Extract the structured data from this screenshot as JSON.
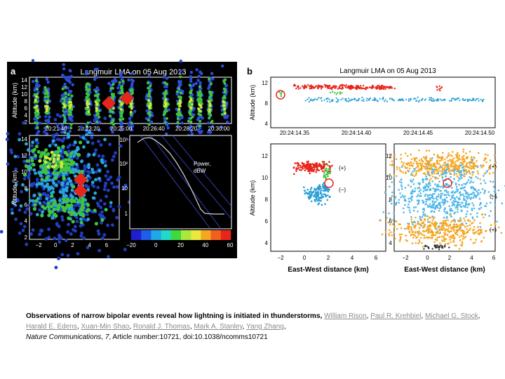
{
  "panel_a": {
    "label": "a",
    "title": "Langmuir LMA on 05 Aug 2013",
    "top_ylabel": "Altitude (km)",
    "top_yticks": [
      "2",
      "4",
      "6",
      "8",
      "10",
      "12",
      "14"
    ],
    "top_xticks": [
      "20:21:40",
      "20:23:20",
      "20:25:00",
      "20:26:40",
      "20:28:20",
      "20:30:00"
    ],
    "plan_ylabel": "Altitude (km)",
    "plan_yticks": [
      "2",
      "4",
      "6",
      "8",
      "10",
      "12",
      "14"
    ],
    "plan_xticks": [
      "−2",
      "0",
      "2",
      "4",
      "6"
    ],
    "power_yticks": [
      "10³",
      "10²",
      "10",
      "1"
    ],
    "power_xticks": [
      "−20",
      "0",
      "20",
      "40",
      "60"
    ],
    "power_label_1": "Power,",
    "power_label_2": "dBW"
  },
  "panel_b": {
    "label": "b",
    "title": "Langmuir LMA on 05 Aug 2013",
    "top_ylabel": "Altitude (km)",
    "top_yticks": [
      "4",
      "8",
      "12"
    ],
    "top_xticks": [
      "20:24:14.35",
      "20:24:14.40",
      "20:24:14.45",
      "20:24:14.50"
    ],
    "left_ylabel": "Altitude (km)",
    "left_yticks": [
      "4",
      "6",
      "8",
      "10",
      "12"
    ],
    "left_xticks": [
      "−2",
      "0",
      "2",
      "4",
      "6"
    ],
    "left_xlabel": "East-West distance (km)",
    "left_marks": [
      "(+)",
      "(−)"
    ],
    "right_yticks": [
      "4",
      "6",
      "8",
      "10",
      "12"
    ],
    "right_xticks": [
      "−2",
      "0",
      "2",
      "4",
      "6"
    ],
    "right_xlabel": "East-West distance (km)",
    "right_marks": [
      "(+)",
      "(−)",
      "(+)"
    ]
  },
  "caption": {
    "title": "Observations of narrow bipolar events reveal how lightning is initiated in thunderstorms,",
    "authors": [
      {
        "name": "William Rison",
        "sep": ", "
      },
      {
        "name": "Paul R. Krehbiel",
        "sep": ", "
      },
      {
        "name": "Michael G. Stock",
        "sep": ", "
      },
      {
        "name": "Harald E. Edens",
        "sep": ", "
      },
      {
        "name": "Xuan-Min Shao",
        "sep": ", "
      },
      {
        "name": "Ronald J. Thomas",
        "sep": ", "
      },
      {
        "name": "Mark A. Stanley",
        "sep": ", "
      },
      {
        "name": "Yang Zhang",
        "sep": ","
      }
    ],
    "journal": "Nature Communications",
    "volume": "7",
    "rest": ", Article number:10721, doi:10.1038/ncomms10721"
  },
  "colors": {
    "panel_bg": "#000000",
    "red": "#e8251b",
    "blue": "#2a9fd6",
    "green": "#3fc43f",
    "orange": "#f5a623",
    "link": "#8a8a8a"
  }
}
